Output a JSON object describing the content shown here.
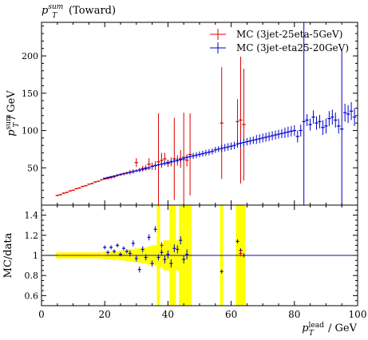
{
  "title": "(Toward)",
  "title_var": {
    "main": "p",
    "sub": "T",
    "sup": "sum"
  },
  "ylabel": {
    "main": "p",
    "sub": "T",
    "sup": "sum",
    "unit": " / GeV"
  },
  "ratio_ylabel": "MC/data",
  "xlabel": {
    "main": "p",
    "sub": "T",
    "sup": "lead",
    "unit": " / GeV"
  },
  "legend": [
    {
      "label": "MC (3jet-25eta-5GeV)",
      "color": "#dd0000"
    },
    {
      "label": "MC (3jet-eta25-20GeV)",
      "color": "#0000cc"
    }
  ],
  "colors": {
    "band": "#ffff00",
    "ref_line": "#000000"
  },
  "chart_data": [
    {
      "type": "scatter",
      "panel": "main",
      "xlim": [
        0,
        100
      ],
      "ylim": [
        0,
        245
      ],
      "x_ticks": [
        0,
        20,
        40,
        60,
        80,
        100
      ],
      "y_ticks": [
        50,
        100,
        150,
        200
      ],
      "series": [
        {
          "name": "MC (3jet-25eta-5GeV)",
          "color": "#dd0000",
          "points": [
            [
              5,
              13,
              1
            ],
            [
              6,
              14,
              1
            ],
            [
              7,
              16,
              1
            ],
            [
              8,
              17,
              1
            ],
            [
              9,
              19,
              1
            ],
            [
              10,
              20,
              1
            ],
            [
              11,
              22,
              1
            ],
            [
              12,
              23,
              1
            ],
            [
              13,
              25,
              1
            ],
            [
              14,
              26,
              1
            ],
            [
              15,
              28,
              1
            ],
            [
              16,
              29,
              1
            ],
            [
              17,
              31,
              1
            ],
            [
              18,
              32,
              1
            ],
            [
              19,
              34,
              1
            ],
            [
              20,
              35,
              1
            ],
            [
              21,
              36,
              2
            ],
            [
              22,
              37,
              2
            ],
            [
              23,
              38,
              2
            ],
            [
              24,
              40,
              2
            ],
            [
              25,
              41,
              2
            ],
            [
              26,
              42,
              2
            ],
            [
              27,
              43,
              2
            ],
            [
              28,
              44,
              3
            ],
            [
              29,
              45,
              3
            ],
            [
              30,
              57,
              6
            ],
            [
              31,
              47,
              3
            ],
            [
              32,
              49,
              4
            ],
            [
              33,
              50,
              4
            ],
            [
              34,
              55,
              8
            ],
            [
              35,
              52,
              5
            ],
            [
              36,
              53,
              6
            ],
            [
              37,
              58,
              65
            ],
            [
              38,
              60,
              10
            ],
            [
              39,
              62,
              8
            ],
            [
              40,
              56,
              5
            ],
            [
              41,
              58,
              6
            ],
            [
              42,
              62,
              55
            ],
            [
              43,
              60,
              7
            ],
            [
              44,
              62,
              12
            ],
            [
              45,
              64,
              60
            ],
            [
              46,
              60,
              8
            ],
            [
              47,
              68,
              55
            ],
            [
              57,
              110,
              75
            ],
            [
              62,
              112,
              30
            ],
            [
              63,
              114,
              85
            ],
            [
              64,
              108,
              75
            ]
          ]
        },
        {
          "name": "MC (3jet-eta25-20GeV)",
          "color": "#0000cc",
          "points": [
            [
              20,
              36,
              1
            ],
            [
              21,
              37,
              1
            ],
            [
              22,
              38,
              1
            ],
            [
              23,
              39,
              1
            ],
            [
              24,
              40,
              1
            ],
            [
              25,
              41,
              1
            ],
            [
              26,
              42,
              1
            ],
            [
              27,
              43,
              1
            ],
            [
              28,
              44,
              2
            ],
            [
              29,
              45,
              2
            ],
            [
              30,
              46,
              2
            ],
            [
              31,
              47,
              2
            ],
            [
              32,
              48,
              2
            ],
            [
              33,
              49,
              2
            ],
            [
              34,
              50,
              2
            ],
            [
              35,
              52,
              2
            ],
            [
              36,
              53,
              2
            ],
            [
              37,
              54,
              2
            ],
            [
              38,
              55,
              3
            ],
            [
              39,
              56,
              3
            ],
            [
              40,
              57,
              3
            ],
            [
              41,
              58,
              3
            ],
            [
              42,
              59,
              3
            ],
            [
              43,
              60,
              3
            ],
            [
              44,
              61,
              3
            ],
            [
              45,
              62,
              3
            ],
            [
              46,
              64,
              3
            ],
            [
              47,
              65,
              3
            ],
            [
              48,
              66,
              4
            ],
            [
              49,
              67,
              4
            ],
            [
              50,
              68,
              4
            ],
            [
              51,
              69,
              4
            ],
            [
              52,
              70,
              4
            ],
            [
              53,
              71,
              4
            ],
            [
              54,
              72,
              4
            ],
            [
              55,
              74,
              4
            ],
            [
              56,
              75,
              4
            ],
            [
              57,
              76,
              5
            ],
            [
              58,
              77,
              5
            ],
            [
              59,
              78,
              5
            ],
            [
              60,
              79,
              5
            ],
            [
              61,
              80,
              5
            ],
            [
              62,
              82,
              5
            ],
            [
              63,
              83,
              5
            ],
            [
              64,
              84,
              5
            ],
            [
              65,
              85,
              5
            ],
            [
              66,
              86,
              5
            ],
            [
              67,
              87,
              5
            ],
            [
              68,
              88,
              6
            ],
            [
              69,
              89,
              6
            ],
            [
              70,
              90,
              6
            ],
            [
              71,
              91,
              6
            ],
            [
              72,
              92,
              6
            ],
            [
              73,
              93,
              6
            ],
            [
              74,
              94,
              6
            ],
            [
              75,
              95,
              6
            ],
            [
              76,
              96,
              6
            ],
            [
              77,
              97,
              7
            ],
            [
              78,
              98,
              7
            ],
            [
              79,
              99,
              7
            ],
            [
              80,
              100,
              7
            ],
            [
              81,
              92,
              8
            ],
            [
              82,
              100,
              8
            ],
            [
              83,
              112,
              150
            ],
            [
              84,
              114,
              8
            ],
            [
              85,
              108,
              8
            ],
            [
              86,
              118,
              9
            ],
            [
              87,
              110,
              9
            ],
            [
              88,
              112,
              9
            ],
            [
              89,
              104,
              10
            ],
            [
              90,
              106,
              10
            ],
            [
              91,
              116,
              10
            ],
            [
              92,
              118,
              10
            ],
            [
              93,
              114,
              10
            ],
            [
              94,
              106,
              10
            ],
            [
              95,
              102,
              105
            ],
            [
              96,
              124,
              12
            ],
            [
              97,
              122,
              12
            ],
            [
              98,
              126,
              12
            ],
            [
              99,
              118,
              12
            ]
          ]
        }
      ]
    },
    {
      "type": "scatter",
      "panel": "ratio",
      "xlim": [
        0,
        100
      ],
      "ylim": [
        0.5,
        1.5
      ],
      "x_ticks": [
        0,
        20,
        40,
        60,
        80,
        100
      ],
      "y_ticks": [
        0.6,
        0.8,
        1,
        1.2,
        1.4
      ],
      "reference_line": 1.0,
      "band": [
        [
          5,
          0.03
        ],
        [
          6,
          0.03
        ],
        [
          7,
          0.03
        ],
        [
          8,
          0.03
        ],
        [
          9,
          0.03
        ],
        [
          10,
          0.03
        ],
        [
          11,
          0.03
        ],
        [
          12,
          0.03
        ],
        [
          13,
          0.03
        ],
        [
          14,
          0.03
        ],
        [
          15,
          0.03
        ],
        [
          16,
          0.03
        ],
        [
          17,
          0.03
        ],
        [
          18,
          0.03
        ],
        [
          19,
          0.03
        ],
        [
          20,
          0.04
        ],
        [
          21,
          0.04
        ],
        [
          22,
          0.04
        ],
        [
          23,
          0.05
        ],
        [
          24,
          0.04
        ],
        [
          25,
          0.05
        ],
        [
          26,
          0.05
        ],
        [
          27,
          0.06
        ],
        [
          28,
          0.06
        ],
        [
          29,
          0.06
        ],
        [
          30,
          0.07
        ],
        [
          31,
          0.07
        ],
        [
          32,
          0.08
        ],
        [
          33,
          0.08
        ],
        [
          34,
          0.09
        ],
        [
          35,
          0.1
        ],
        [
          36,
          0.1
        ],
        [
          37,
          0.6
        ],
        [
          38,
          0.12
        ],
        [
          39,
          0.15
        ],
        [
          40,
          0.15
        ],
        [
          41,
          0.6
        ],
        [
          42,
          0.6
        ],
        [
          43,
          0.15
        ],
        [
          44,
          0.6
        ],
        [
          45,
          0.6
        ],
        [
          46,
          0.6
        ],
        [
          47,
          0.6
        ],
        [
          57,
          0.6
        ],
        [
          62,
          0.6
        ],
        [
          63,
          0.6
        ],
        [
          64,
          0.6
        ]
      ],
      "series": [
        {
          "name": "MC (3jet-eta25-20GeV)",
          "color": "#0000cc",
          "points": [
            [
              20,
              1.08,
              0.02
            ],
            [
              21,
              1.03,
              0.02
            ],
            [
              22,
              1.08,
              0.02
            ],
            [
              23,
              1.04,
              0.02
            ],
            [
              24,
              1.1,
              0.02
            ],
            [
              25,
              1.01,
              0.02
            ],
            [
              26,
              1.07,
              0.02
            ],
            [
              27,
              1.04,
              0.02
            ],
            [
              28,
              1.02,
              0.03
            ],
            [
              29,
              1.12,
              0.03
            ],
            [
              30,
              0.97,
              0.03
            ],
            [
              31,
              0.86,
              0.03
            ],
            [
              32,
              1.06,
              0.03
            ],
            [
              33,
              0.98,
              0.03
            ],
            [
              34,
              1.18,
              0.03
            ],
            [
              35,
              0.92,
              0.03
            ],
            [
              36,
              1.26,
              0.03
            ],
            [
              37,
              0.98,
              0.03
            ],
            [
              38,
              1.03,
              0.03
            ],
            [
              39,
              0.96,
              0.04
            ],
            [
              40,
              1.01,
              0.04
            ],
            [
              41,
              0.92,
              0.04
            ],
            [
              42,
              1.07,
              0.04
            ],
            [
              43,
              1.06,
              0.04
            ],
            [
              44,
              1.15,
              0.04
            ],
            [
              45,
              0.96,
              0.04
            ],
            [
              46,
              1.01,
              0.05
            ],
            [
              57,
              0.84,
              0.02
            ],
            [
              62,
              1.14,
              0.02
            ],
            [
              63,
              1.05,
              0.02
            ],
            [
              64,
              1.0,
              0.02
            ]
          ]
        },
        {
          "name": "MC (3jet-25eta-5GeV)",
          "color": "#dd0000",
          "points": [
            [
              38,
              1.1,
              0.03
            ],
            [
              63,
              1.02,
              0.03
            ]
          ]
        }
      ]
    }
  ]
}
